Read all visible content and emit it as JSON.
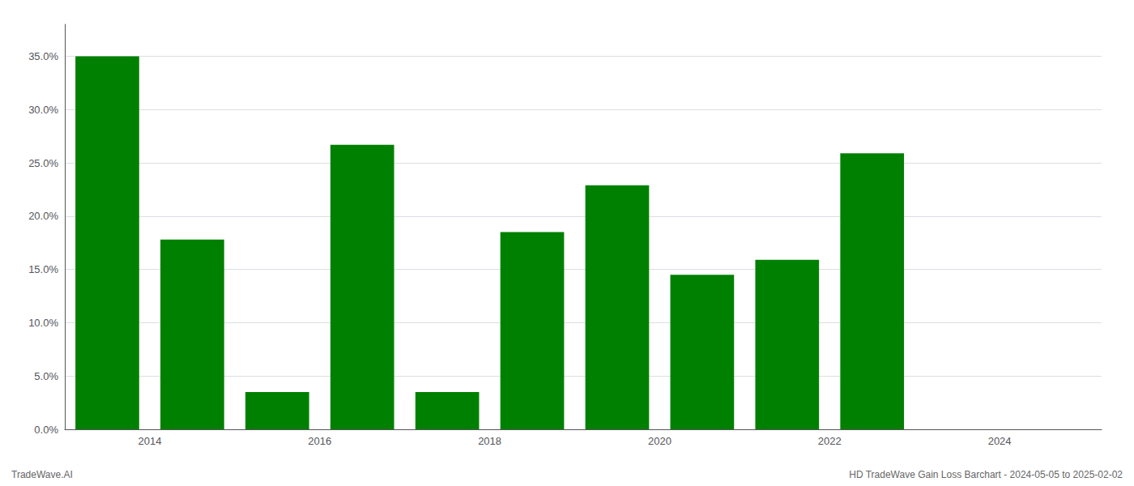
{
  "chart_data": {
    "type": "bar",
    "x": [
      2013.3,
      2014.3,
      2015.3,
      2016.3,
      2017.3,
      2018.3,
      2019.3,
      2020.3,
      2021.3,
      2022.3
    ],
    "values": [
      0.35,
      0.178,
      0.035,
      0.267,
      0.035,
      0.185,
      0.229,
      0.145,
      0.159,
      0.259
    ],
    "color": "#008000",
    "xlim": [
      2012.8,
      2025.0
    ],
    "xticks": [
      {
        "value": 2013.8,
        "label": "2014"
      },
      {
        "value": 2015.8,
        "label": "2016"
      },
      {
        "value": 2017.8,
        "label": "2018"
      },
      {
        "value": 2019.8,
        "label": "2020"
      },
      {
        "value": 2021.8,
        "label": "2022"
      },
      {
        "value": 2023.8,
        "label": "2024"
      }
    ],
    "ylim": [
      0.0,
      0.38
    ],
    "yticks": [
      {
        "value": 0.0,
        "label": "0.0%"
      },
      {
        "value": 0.05,
        "label": "5.0%"
      },
      {
        "value": 0.1,
        "label": "10.0%"
      },
      {
        "value": 0.15,
        "label": "15.0%"
      },
      {
        "value": 0.2,
        "label": "20.0%"
      },
      {
        "value": 0.25,
        "label": "25.0%"
      },
      {
        "value": 0.3,
        "label": "30.0%"
      },
      {
        "value": 0.35,
        "label": "35.0%"
      }
    ],
    "grid": true,
    "annotations": [
      "TradeWave.AI",
      "HD TradeWave Gain Loss Barchart - 2024-05-05 to 2025-02-02"
    ]
  }
}
